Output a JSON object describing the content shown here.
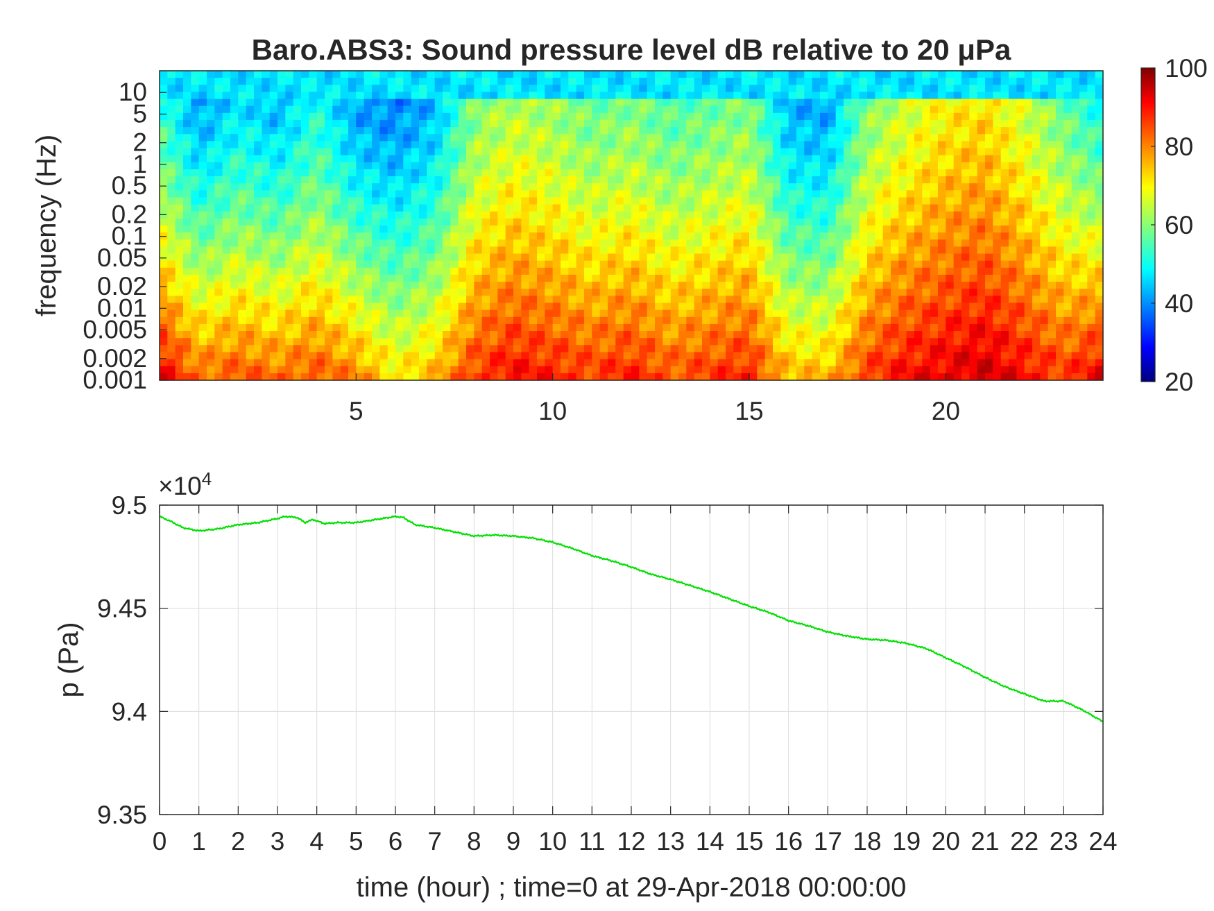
{
  "chart_data": [
    {
      "type": "heatmap",
      "title": "Baro.ABS3: Sound pressure level dB relative to 20 μPa",
      "ylabel": "frequency (Hz)",
      "xlabel": "",
      "y_scale": "log",
      "xlim": [
        0,
        24
      ],
      "ylim": [
        0.001,
        20
      ],
      "x_ticks": [
        5,
        10,
        15,
        20
      ],
      "x_tick_labels": [
        "5",
        "10",
        "15",
        "20"
      ],
      "y_ticks": [
        0.001,
        0.002,
        0.005,
        0.01,
        0.02,
        0.05,
        0.1,
        0.2,
        0.5,
        1,
        2,
        5,
        10
      ],
      "y_tick_labels": [
        "0.001",
        "0.002",
        "0.005",
        "0.01",
        "0.02",
        "0.05",
        "0.1",
        "0.2",
        "0.5",
        "1",
        "2",
        "5",
        "10"
      ],
      "colormap": "jet",
      "colorbar": {
        "range": [
          20,
          100
        ],
        "ticks": [
          20,
          40,
          60,
          80,
          100
        ],
        "tick_labels": [
          "20",
          "40",
          "60",
          "80",
          "100"
        ]
      },
      "time_hours": [
        0,
        1,
        2,
        3,
        4,
        5,
        6,
        7,
        8,
        9,
        10,
        11,
        12,
        13,
        14,
        15,
        16,
        17,
        18,
        19,
        20,
        21,
        22,
        23,
        24
      ],
      "band_level_hf_db": [
        54,
        42,
        48,
        44,
        52,
        42,
        40,
        44,
        60,
        64,
        62,
        58,
        60,
        56,
        58,
        60,
        44,
        42,
        60,
        66,
        70,
        72,
        66,
        58,
        50
      ],
      "band_level_lf_db": [
        92,
        82,
        84,
        82,
        84,
        80,
        72,
        76,
        86,
        90,
        88,
        86,
        88,
        84,
        86,
        88,
        76,
        76,
        86,
        90,
        92,
        94,
        90,
        86,
        92
      ]
    },
    {
      "type": "line",
      "title": "",
      "xlabel": "time (hour) ; time=0 at 29-Apr-2018 00:00:00",
      "ylabel": "p (Pa)",
      "xlim": [
        0,
        24
      ],
      "ylim": [
        93500,
        95000
      ],
      "y_multiplier_label": "×10",
      "y_multiplier_exponent": "4",
      "y_ticks": [
        93500,
        94000,
        94500,
        95000
      ],
      "y_tick_labels": [
        "9.35",
        "9.4",
        "9.45",
        "9.5"
      ],
      "x_ticks": [
        0,
        1,
        2,
        3,
        4,
        5,
        6,
        7,
        8,
        9,
        10,
        11,
        12,
        13,
        14,
        15,
        16,
        17,
        18,
        19,
        20,
        21,
        22,
        23,
        24
      ],
      "x_tick_labels": [
        "0",
        "1",
        "2",
        "3",
        "4",
        "5",
        "6",
        "7",
        "8",
        "9",
        "10",
        "11",
        "12",
        "13",
        "14",
        "15",
        "16",
        "17",
        "18",
        "19",
        "20",
        "21",
        "22",
        "23",
        "24"
      ],
      "grid": true,
      "series": [
        {
          "color": "#00e000",
          "x": [
            0,
            0.3,
            0.6,
            1.0,
            1.5,
            2.0,
            2.5,
            3.0,
            3.2,
            3.5,
            3.7,
            3.9,
            4.2,
            4.5,
            5.0,
            5.5,
            6.0,
            6.2,
            6.5,
            7.0,
            7.5,
            8.0,
            8.5,
            9.0,
            9.5,
            10.0,
            10.5,
            11.0,
            11.5,
            12.0,
            12.5,
            13.0,
            13.5,
            14.0,
            14.5,
            15.0,
            15.5,
            16.0,
            16.5,
            17.0,
            17.5,
            18.0,
            18.5,
            19.0,
            19.5,
            20.0,
            20.5,
            21.0,
            21.5,
            22.0,
            22.5,
            23.0,
            23.5,
            24.0
          ],
          "y": [
            94945,
            94920,
            94890,
            94875,
            94885,
            94905,
            94915,
            94935,
            94945,
            94940,
            94915,
            94930,
            94910,
            94915,
            94915,
            94930,
            94945,
            94940,
            94905,
            94890,
            94870,
            94850,
            94855,
            94850,
            94840,
            94820,
            94790,
            94755,
            94730,
            94700,
            94665,
            94640,
            94610,
            94580,
            94545,
            94510,
            94480,
            94440,
            94415,
            94385,
            94365,
            94350,
            94345,
            94330,
            94305,
            94260,
            94215,
            94165,
            94120,
            94085,
            94050,
            94050,
            94005,
            93950
          ]
        }
      ]
    }
  ]
}
